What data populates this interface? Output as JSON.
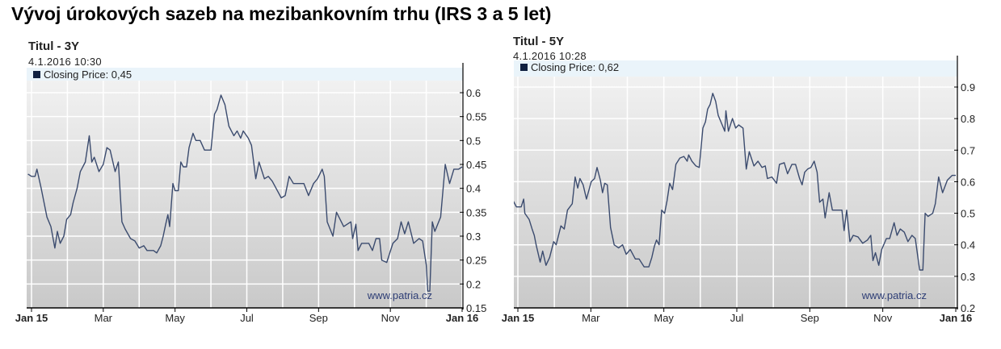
{
  "page_title": "Vývoj úrokových sazeb na mezibankovním trhu (IRS 3 a 5 let)",
  "colors": {
    "line": "#3b4b6e",
    "legend_band": "#eaf4fa",
    "legend_marker": "#102040",
    "watermark": "#2d3d75"
  },
  "chart_data": [
    {
      "type": "line",
      "title": "Titul - 3Y",
      "timestamp": "4.1.2016 10:30",
      "legend": "Closing Price: 0,45",
      "watermark": "www.patria.cz",
      "xlabel": "",
      "ylabel": "",
      "x_ticks": [
        "Jan 15",
        "Mar",
        "May",
        "Jul",
        "Sep",
        "Nov",
        "Jan 16"
      ],
      "x_tick_months": [
        0,
        2,
        4,
        6,
        8,
        10,
        12
      ],
      "y_ticks": [
        "0.15",
        "0.2",
        "0.25",
        "0.3",
        "0.35",
        "0.4",
        "0.45",
        "0.5",
        "0.55",
        "0.6"
      ],
      "ylim": [
        0.15,
        0.6
      ],
      "grid": true,
      "series": [
        {
          "name": "Closing Price",
          "points": [
            [
              -0.1,
              0.43
            ],
            [
              0,
              0.425
            ],
            [
              0.1,
              0.425
            ],
            [
              0.15,
              0.44
            ],
            [
              0.27,
              0.4
            ],
            [
              0.43,
              0.34
            ],
            [
              0.54,
              0.32
            ],
            [
              0.65,
              0.275
            ],
            [
              0.72,
              0.31
            ],
            [
              0.8,
              0.285
            ],
            [
              0.9,
              0.3
            ],
            [
              0.98,
              0.335
            ],
            [
              1.09,
              0.345
            ],
            [
              1.16,
              0.37
            ],
            [
              1.27,
              0.4
            ],
            [
              1.36,
              0.435
            ],
            [
              1.5,
              0.455
            ],
            [
              1.61,
              0.51
            ],
            [
              1.68,
              0.455
            ],
            [
              1.75,
              0.465
            ],
            [
              1.88,
              0.435
            ],
            [
              2.0,
              0.45
            ],
            [
              2.1,
              0.485
            ],
            [
              2.19,
              0.48
            ],
            [
              2.33,
              0.435
            ],
            [
              2.42,
              0.455
            ],
            [
              2.52,
              0.33
            ],
            [
              2.61,
              0.315
            ],
            [
              2.76,
              0.295
            ],
            [
              2.88,
              0.29
            ],
            [
              3.0,
              0.275
            ],
            [
              3.13,
              0.28
            ],
            [
              3.22,
              0.27
            ],
            [
              3.4,
              0.27
            ],
            [
              3.49,
              0.265
            ],
            [
              3.6,
              0.28
            ],
            [
              3.67,
              0.3
            ],
            [
              3.74,
              0.325
            ],
            [
              3.8,
              0.345
            ],
            [
              3.85,
              0.32
            ],
            [
              3.94,
              0.41
            ],
            [
              4.0,
              0.395
            ],
            [
              4.09,
              0.395
            ],
            [
              4.16,
              0.455
            ],
            [
              4.23,
              0.445
            ],
            [
              4.32,
              0.445
            ],
            [
              4.39,
              0.485
            ],
            [
              4.5,
              0.515
            ],
            [
              4.58,
              0.5
            ],
            [
              4.7,
              0.5
            ],
            [
              4.82,
              0.48
            ],
            [
              5.0,
              0.48
            ],
            [
              5.1,
              0.555
            ],
            [
              5.17,
              0.565
            ],
            [
              5.28,
              0.595
            ],
            [
              5.39,
              0.575
            ],
            [
              5.5,
              0.53
            ],
            [
              5.64,
              0.51
            ],
            [
              5.73,
              0.52
            ],
            [
              5.83,
              0.505
            ],
            [
              5.9,
              0.52
            ],
            [
              6.04,
              0.505
            ],
            [
              6.13,
              0.49
            ],
            [
              6.25,
              0.42
            ],
            [
              6.34,
              0.455
            ],
            [
              6.49,
              0.42
            ],
            [
              6.6,
              0.425
            ],
            [
              6.71,
              0.415
            ],
            [
              6.85,
              0.395
            ],
            [
              6.96,
              0.38
            ],
            [
              7.07,
              0.385
            ],
            [
              7.18,
              0.425
            ],
            [
              7.3,
              0.41
            ],
            [
              7.43,
              0.41
            ],
            [
              7.59,
              0.41
            ],
            [
              7.72,
              0.385
            ],
            [
              7.86,
              0.41
            ],
            [
              7.97,
              0.42
            ],
            [
              8.1,
              0.44
            ],
            [
              8.16,
              0.425
            ],
            [
              8.24,
              0.33
            ],
            [
              8.4,
              0.3
            ],
            [
              8.5,
              0.35
            ],
            [
              8.7,
              0.32
            ],
            [
              8.9,
              0.33
            ],
            [
              8.95,
              0.295
            ],
            [
              9.04,
              0.325
            ],
            [
              9.1,
              0.27
            ],
            [
              9.2,
              0.285
            ],
            [
              9.4,
              0.285
            ],
            [
              9.5,
              0.27
            ],
            [
              9.6,
              0.295
            ],
            [
              9.7,
              0.295
            ],
            [
              9.76,
              0.25
            ],
            [
              9.9,
              0.245
            ],
            [
              10.07,
              0.285
            ],
            [
              10.2,
              0.295
            ],
            [
              10.3,
              0.33
            ],
            [
              10.4,
              0.305
            ],
            [
              10.5,
              0.33
            ],
            [
              10.65,
              0.285
            ],
            [
              10.8,
              0.295
            ],
            [
              10.9,
              0.29
            ],
            [
              11.0,
              0.24
            ],
            [
              11.04,
              0.185
            ],
            [
              11.1,
              0.185
            ],
            [
              11.17,
              0.33
            ],
            [
              11.24,
              0.31
            ],
            [
              11.4,
              0.34
            ],
            [
              11.53,
              0.45
            ],
            [
              11.65,
              0.41
            ],
            [
              11.77,
              0.44
            ],
            [
              11.9,
              0.44
            ],
            [
              12.0,
              0.445
            ]
          ]
        }
      ]
    },
    {
      "type": "line",
      "title": "Titul - 5Y",
      "timestamp": "4.1.2016 10:28",
      "legend": "Closing Price: 0,62",
      "watermark": "www.patria.cz",
      "xlabel": "",
      "ylabel": "",
      "x_ticks": [
        "Jan 15",
        "Mar",
        "May",
        "Jul",
        "Sep",
        "Nov",
        "Jan 16"
      ],
      "x_tick_months": [
        0,
        2,
        4,
        6,
        8,
        10,
        12
      ],
      "y_ticks": [
        "0.2",
        "0.3",
        "0.4",
        "0.5",
        "0.6",
        "0.7",
        "0.8",
        "0.9"
      ],
      "ylim": [
        0.2,
        0.9
      ],
      "grid": true,
      "series": [
        {
          "name": "Closing Price",
          "points": [
            [
              -0.13,
              0.54
            ],
            [
              -0.04,
              0.52
            ],
            [
              0.09,
              0.52
            ],
            [
              0.16,
              0.545
            ],
            [
              0.19,
              0.5
            ],
            [
              0.31,
              0.48
            ],
            [
              0.39,
              0.45
            ],
            [
              0.45,
              0.43
            ],
            [
              0.5,
              0.4
            ],
            [
              0.61,
              0.345
            ],
            [
              0.68,
              0.38
            ],
            [
              0.77,
              0.335
            ],
            [
              0.87,
              0.36
            ],
            [
              0.98,
              0.41
            ],
            [
              1.05,
              0.4
            ],
            [
              1.18,
              0.46
            ],
            [
              1.27,
              0.45
            ],
            [
              1.36,
              0.51
            ],
            [
              1.49,
              0.53
            ],
            [
              1.57,
              0.615
            ],
            [
              1.64,
              0.58
            ],
            [
              1.7,
              0.61
            ],
            [
              1.79,
              0.59
            ],
            [
              1.88,
              0.545
            ],
            [
              2.01,
              0.6
            ],
            [
              2.1,
              0.61
            ],
            [
              2.17,
              0.645
            ],
            [
              2.26,
              0.605
            ],
            [
              2.32,
              0.565
            ],
            [
              2.38,
              0.595
            ],
            [
              2.45,
              0.59
            ],
            [
              2.54,
              0.455
            ],
            [
              2.64,
              0.4
            ],
            [
              2.76,
              0.39
            ],
            [
              2.87,
              0.4
            ],
            [
              2.97,
              0.37
            ],
            [
              3.08,
              0.385
            ],
            [
              3.22,
              0.355
            ],
            [
              3.32,
              0.355
            ],
            [
              3.46,
              0.33
            ],
            [
              3.59,
              0.33
            ],
            [
              3.67,
              0.36
            ],
            [
              3.74,
              0.395
            ],
            [
              3.8,
              0.415
            ],
            [
              3.87,
              0.4
            ],
            [
              3.94,
              0.51
            ],
            [
              4.02,
              0.5
            ],
            [
              4.09,
              0.54
            ],
            [
              4.16,
              0.595
            ],
            [
              4.24,
              0.575
            ],
            [
              4.33,
              0.655
            ],
            [
              4.44,
              0.675
            ],
            [
              4.55,
              0.68
            ],
            [
              4.64,
              0.665
            ],
            [
              4.68,
              0.685
            ],
            [
              4.77,
              0.665
            ],
            [
              4.88,
              0.65
            ],
            [
              4.97,
              0.645
            ],
            [
              5.07,
              0.77
            ],
            [
              5.14,
              0.79
            ],
            [
              5.2,
              0.83
            ],
            [
              5.27,
              0.845
            ],
            [
              5.34,
              0.88
            ],
            [
              5.42,
              0.855
            ],
            [
              5.49,
              0.81
            ],
            [
              5.6,
              0.78
            ],
            [
              5.67,
              0.76
            ],
            [
              5.7,
              0.825
            ],
            [
              5.77,
              0.76
            ],
            [
              5.88,
              0.8
            ],
            [
              5.97,
              0.77
            ],
            [
              6.05,
              0.78
            ],
            [
              6.17,
              0.77
            ],
            [
              6.26,
              0.64
            ],
            [
              6.34,
              0.695
            ],
            [
              6.47,
              0.65
            ],
            [
              6.58,
              0.665
            ],
            [
              6.69,
              0.645
            ],
            [
              6.78,
              0.65
            ],
            [
              6.84,
              0.61
            ],
            [
              6.96,
              0.615
            ],
            [
              7.09,
              0.595
            ],
            [
              7.17,
              0.655
            ],
            [
              7.3,
              0.66
            ],
            [
              7.39,
              0.625
            ],
            [
              7.51,
              0.655
            ],
            [
              7.61,
              0.655
            ],
            [
              7.72,
              0.61
            ],
            [
              7.79,
              0.59
            ],
            [
              7.86,
              0.63
            ],
            [
              7.94,
              0.64
            ],
            [
              8.03,
              0.645
            ],
            [
              8.12,
              0.665
            ],
            [
              8.2,
              0.63
            ],
            [
              8.27,
              0.535
            ],
            [
              8.36,
              0.545
            ],
            [
              8.42,
              0.485
            ],
            [
              8.53,
              0.565
            ],
            [
              8.62,
              0.51
            ],
            [
              8.88,
              0.51
            ],
            [
              8.94,
              0.445
            ],
            [
              9.01,
              0.51
            ],
            [
              9.1,
              0.41
            ],
            [
              9.19,
              0.43
            ],
            [
              9.32,
              0.425
            ],
            [
              9.45,
              0.405
            ],
            [
              9.58,
              0.415
            ],
            [
              9.67,
              0.43
            ],
            [
              9.73,
              0.35
            ],
            [
              9.8,
              0.375
            ],
            [
              9.89,
              0.335
            ],
            [
              9.97,
              0.385
            ],
            [
              10.1,
              0.42
            ],
            [
              10.19,
              0.42
            ],
            [
              10.31,
              0.47
            ],
            [
              10.39,
              0.43
            ],
            [
              10.48,
              0.45
            ],
            [
              10.59,
              0.44
            ],
            [
              10.69,
              0.41
            ],
            [
              10.8,
              0.43
            ],
            [
              10.89,
              0.42
            ],
            [
              11.01,
              0.32
            ],
            [
              11.1,
              0.32
            ],
            [
              11.16,
              0.5
            ],
            [
              11.24,
              0.49
            ],
            [
              11.37,
              0.5
            ],
            [
              11.44,
              0.53
            ],
            [
              11.53,
              0.615
            ],
            [
              11.64,
              0.565
            ],
            [
              11.77,
              0.605
            ],
            [
              11.9,
              0.62
            ],
            [
              12.0,
              0.62
            ]
          ]
        }
      ]
    }
  ]
}
